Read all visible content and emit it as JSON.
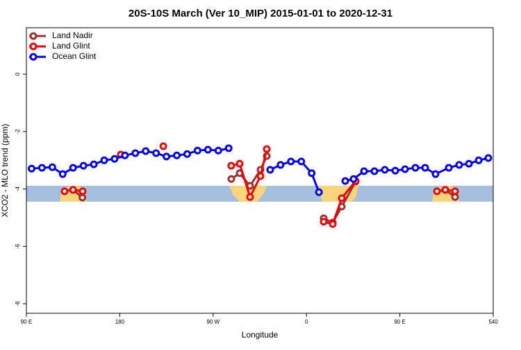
{
  "chart_data": {
    "type": "line",
    "title": "20S-10S March (Ver 10_MIP)   2015-01-01 to 2020-12-31",
    "x_label": "Longitude",
    "y_label": "XCO2 - MLO trend (ppm)",
    "xlim": [
      90,
      540
    ],
    "ylim": [
      -8.33,
      1.62
    ],
    "xticks": [
      {
        "value": 90,
        "label": "90 E"
      },
      180,
      {
        "value": 270,
        "label": "90 W"
      },
      {
        "value": 360,
        "label": "0"
      },
      {
        "value": 450,
        "label": "90 E"
      },
      540
    ],
    "yticks": [
      0,
      -2,
      -4,
      -6,
      -8
    ],
    "legend": "top-left",
    "series": [
      {
        "name": "Land Nadir",
        "color": "#a03030",
        "x": [
          135,
          144,
          215,
          287.5,
          295.6,
          305.6,
          315.7,
          321.7,
          350,
          376.6,
          385.3,
          394,
          407.4,
          450,
          493.8,
          503.2
        ],
        "values": [
          -4.03,
          -4.3,
          null,
          -3.65,
          -3.45,
          -3.89,
          -3.33,
          -2.85,
          null,
          -5.02,
          -5.17,
          -4.61,
          -3.74,
          null,
          -4.03,
          -4.28
        ]
      },
      {
        "name": "Land Glint",
        "color": "#ee0000",
        "x": [
          126.8,
          135,
          144.2,
          160,
          181,
          200,
          222,
          260,
          287.5,
          295.6,
          305.6,
          315.7,
          321.7,
          350,
          376.6,
          385.3,
          394,
          407.4,
          450,
          485.8,
          493.8,
          503.2
        ],
        "values": [
          -4.08,
          -4.03,
          -4.08,
          null,
          -2.8,
          null,
          -2.51,
          null,
          -3.19,
          -3.12,
          -4.28,
          -3.55,
          -2.61,
          null,
          -5.14,
          -5.22,
          -4.32,
          -3.72,
          null,
          -4.08,
          -4.03,
          -4.08
        ]
      },
      {
        "name": "Ocean Glint",
        "color": "#0000ee",
        "x": [
          95,
          105,
          115,
          125,
          135,
          145,
          155,
          165,
          175,
          185,
          195,
          205,
          215,
          225,
          235,
          245,
          255,
          265,
          275,
          285,
          305,
          325,
          335,
          345,
          355,
          365,
          372,
          385,
          397.4,
          405.4,
          415.5,
          425.5,
          435.5,
          445.6,
          455,
          465,
          474.4,
          484.4,
          497.2,
          507.2,
          516.6,
          526,
          535.3
        ],
        "values": [
          -3.29,
          -3.26,
          -3.24,
          -3.48,
          -3.26,
          -3.19,
          -3.14,
          -3.0,
          -2.95,
          -2.83,
          -2.75,
          -2.68,
          -2.75,
          -2.87,
          -2.83,
          -2.78,
          -2.66,
          -2.63,
          -2.66,
          -2.58,
          null,
          -3.33,
          -3.16,
          -3.04,
          -3.04,
          -3.45,
          -4.11,
          null,
          -3.72,
          -3.65,
          -3.38,
          -3.38,
          -3.33,
          -3.36,
          -3.31,
          -3.26,
          -3.26,
          -3.48,
          -3.26,
          -3.16,
          -3.12,
          -3.0,
          -2.92
        ]
      }
    ]
  }
}
